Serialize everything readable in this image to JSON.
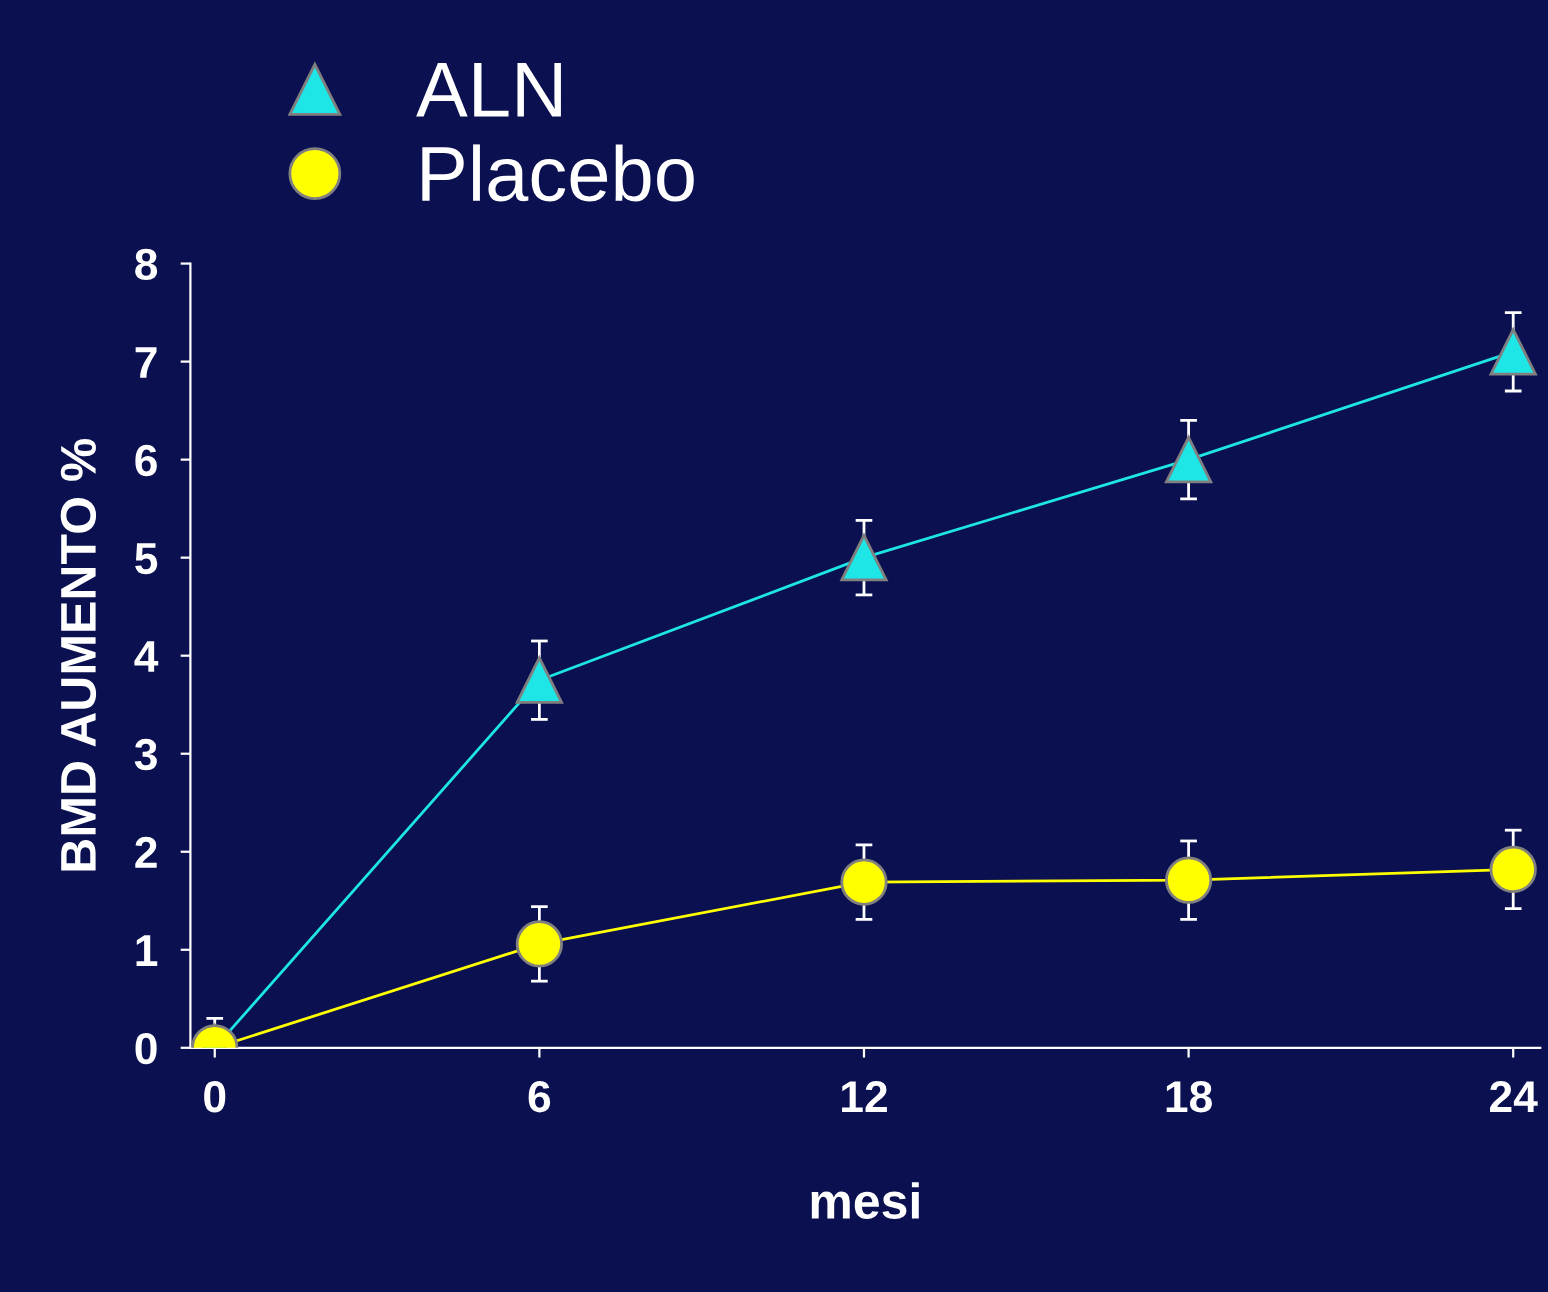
{
  "chart_data": {
    "type": "line",
    "xlabel": "mesi",
    "ylabel": "BMD AUMENTO %",
    "x": [
      0,
      6,
      12,
      18,
      24
    ],
    "series": [
      {
        "name": "ALN",
        "color": "#1ee6e6",
        "marker": "triangle",
        "values": [
          0,
          3.75,
          5.0,
          6.0,
          7.1
        ],
        "errors": [
          null,
          0.4,
          0.38,
          0.4,
          0.4
        ]
      },
      {
        "name": "Placebo",
        "color": "#ffff00",
        "marker": "circle",
        "values": [
          0,
          1.06,
          1.69,
          1.71,
          1.82
        ],
        "errors": [
          0.3,
          0.38,
          0.38,
          0.4,
          0.4
        ]
      }
    ],
    "xlim": [
      -0.45,
      24.5
    ],
    "ylim": [
      0,
      8
    ],
    "xticks": [
      0,
      6,
      12,
      18,
      24
    ],
    "yticks": [
      0,
      1,
      2,
      3,
      4,
      5,
      6,
      7,
      8
    ],
    "grid": false,
    "legend": "top left",
    "line_style": "solid"
  }
}
